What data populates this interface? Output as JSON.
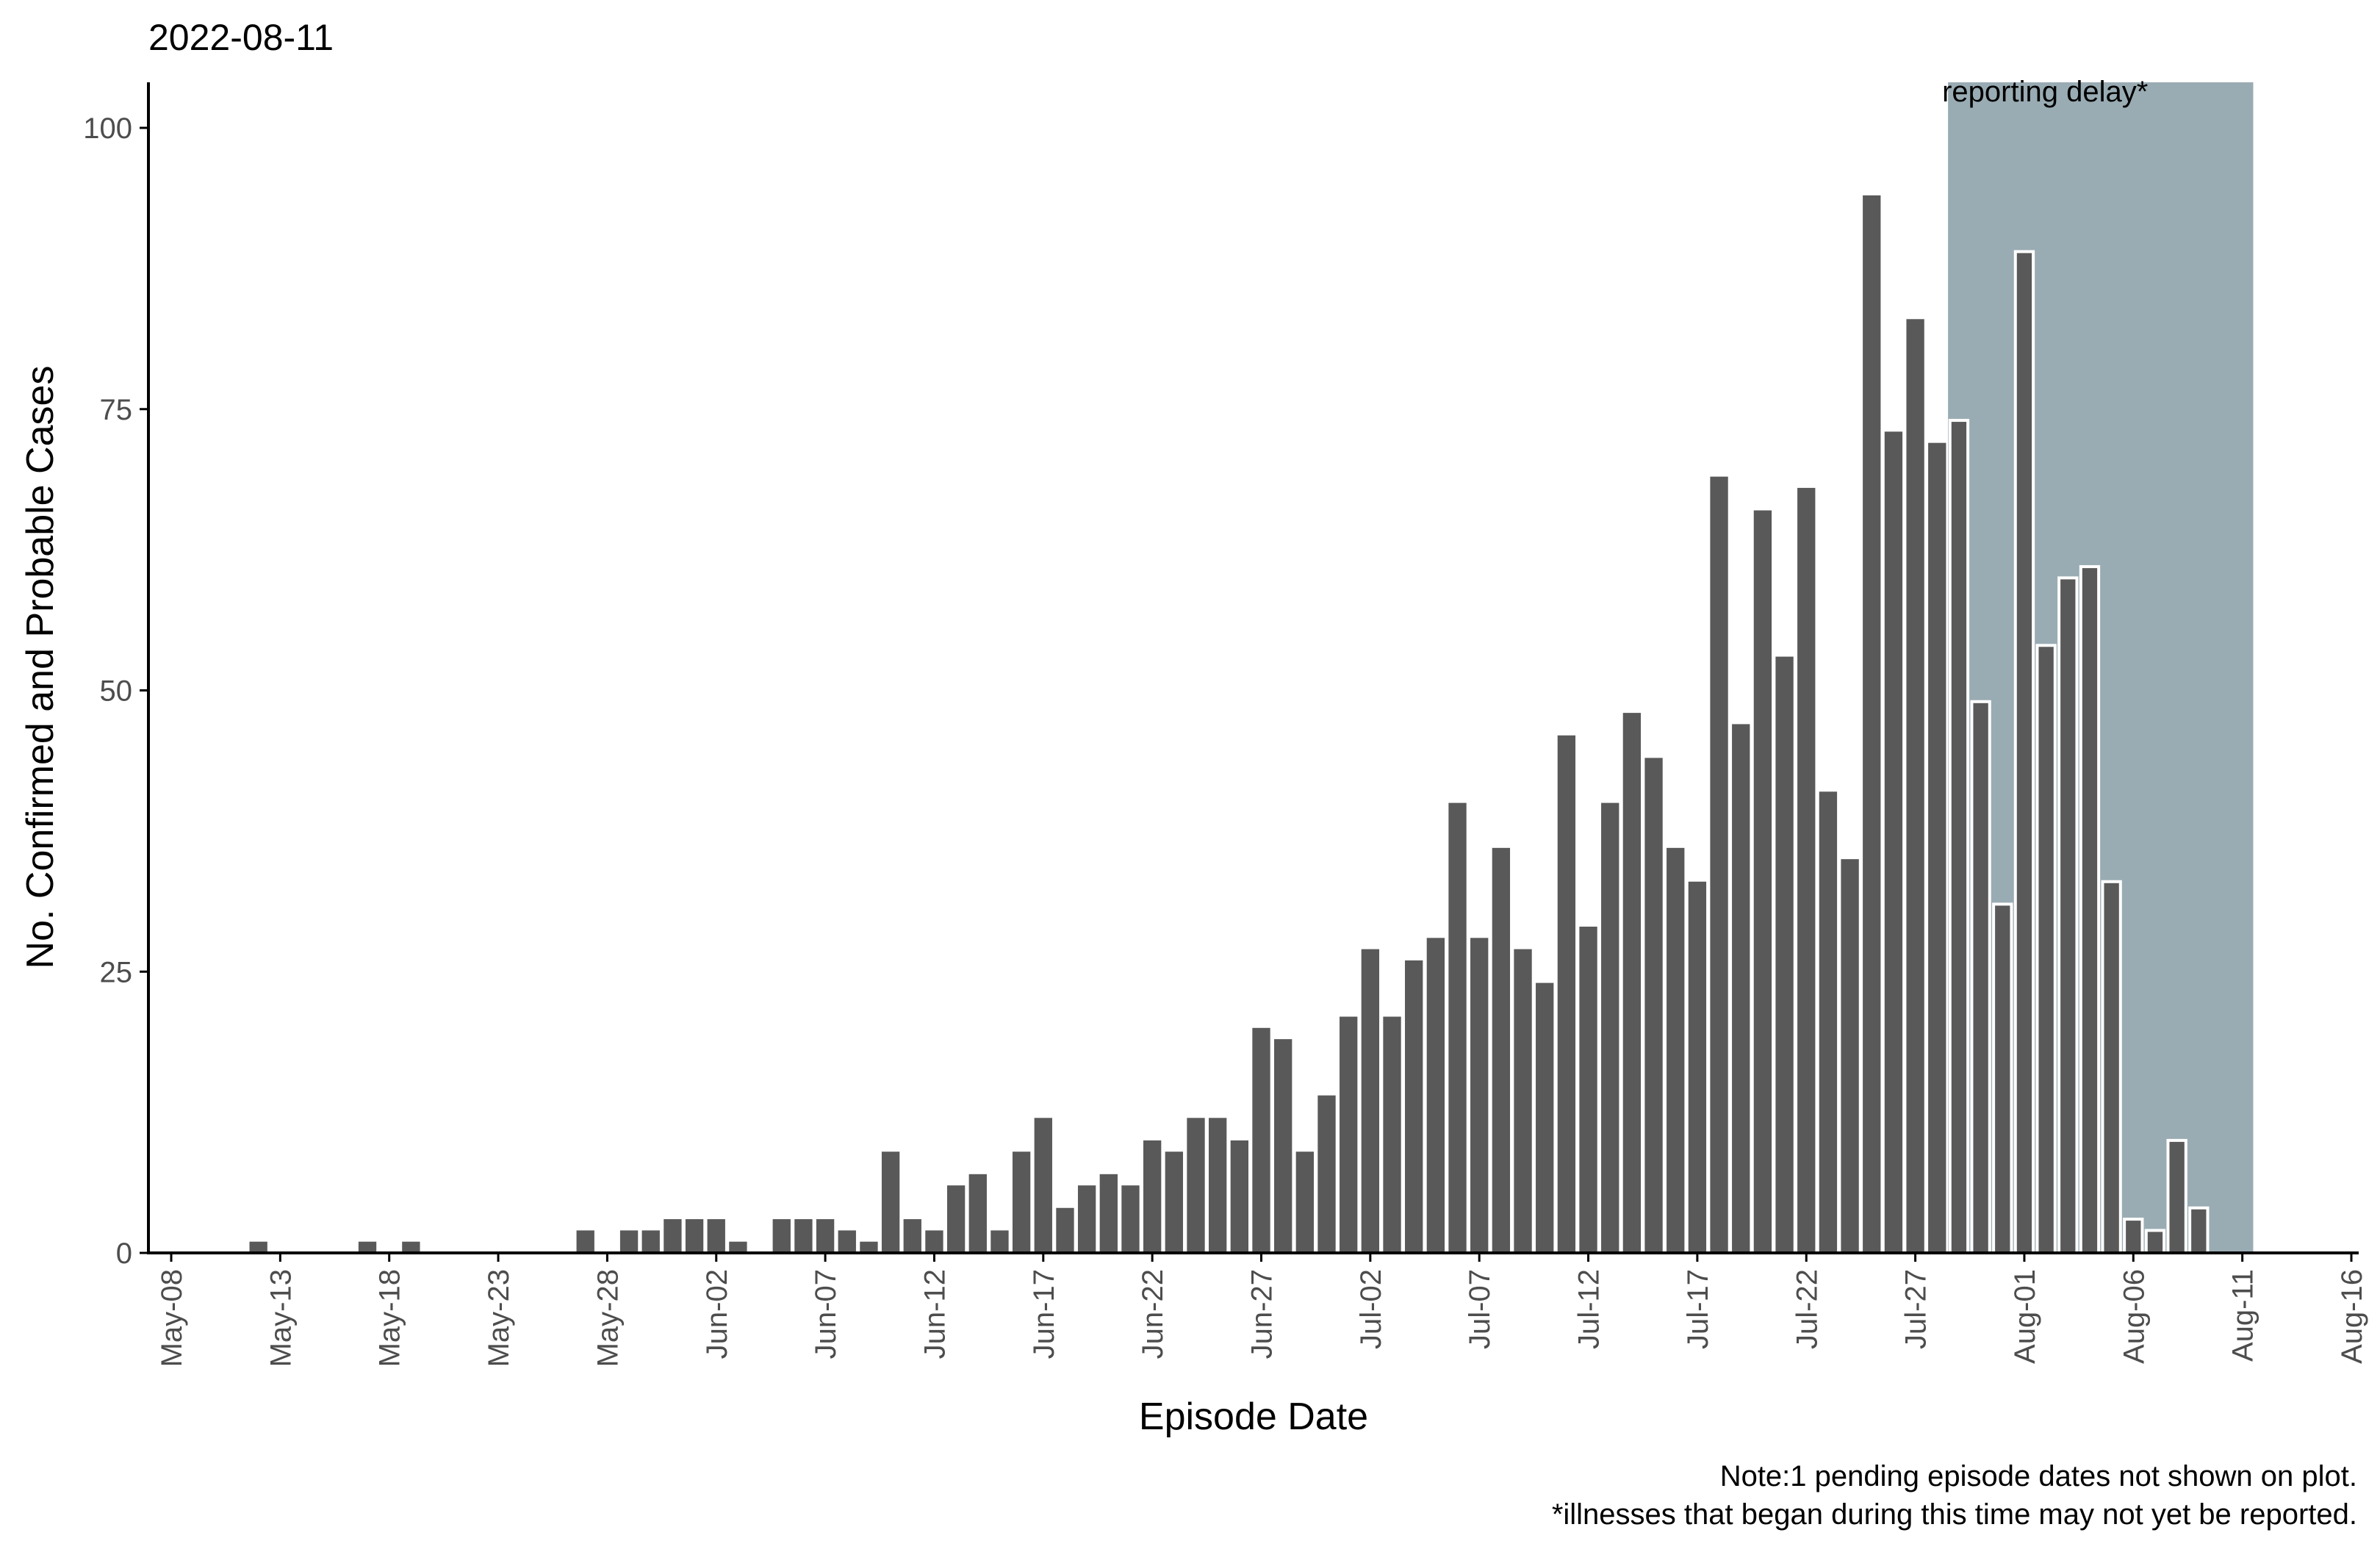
{
  "chart_data": {
    "type": "bar",
    "title": "2022-08-11",
    "xlabel": "Episode Date",
    "ylabel": "No. Confirmed and Probable Cases",
    "ylim": [
      0,
      104
    ],
    "y_ticks": [
      0,
      25,
      50,
      75,
      100
    ],
    "x_range": [
      "2022-05-07",
      "2022-08-16"
    ],
    "x_ticks": [
      "2022-05-08",
      "2022-05-13",
      "2022-05-18",
      "2022-05-23",
      "2022-05-28",
      "2022-06-02",
      "2022-06-07",
      "2022-06-12",
      "2022-06-17",
      "2022-06-22",
      "2022-06-27",
      "2022-07-02",
      "2022-07-07",
      "2022-07-12",
      "2022-07-17",
      "2022-07-22",
      "2022-07-27",
      "2022-08-01",
      "2022-08-06",
      "2022-08-11",
      "2022-08-16"
    ],
    "x_tick_labels": [
      "May-08",
      "May-13",
      "May-18",
      "May-23",
      "May-28",
      "Jun-02",
      "Jun-07",
      "Jun-12",
      "Jun-17",
      "Jun-22",
      "Jun-27",
      "Jul-02",
      "Jul-07",
      "Jul-12",
      "Jul-17",
      "Jul-22",
      "Jul-27",
      "Aug-01",
      "Aug-06",
      "Aug-11",
      "Aug-16"
    ],
    "start_date": "2022-05-12",
    "values": [
      1,
      0,
      0,
      0,
      0,
      1,
      0,
      1,
      0,
      0,
      0,
      0,
      0,
      0,
      0,
      2,
      0,
      2,
      2,
      3,
      3,
      3,
      1,
      0,
      3,
      3,
      3,
      2,
      1,
      9,
      3,
      2,
      6,
      7,
      2,
      9,
      12,
      4,
      6,
      7,
      6,
      10,
      9,
      12,
      12,
      10,
      20,
      19,
      9,
      14,
      21,
      27,
      21,
      26,
      28,
      40,
      28,
      36,
      27,
      24,
      46,
      29,
      40,
      48,
      44,
      36,
      33,
      69,
      47,
      66,
      53,
      68,
      41,
      35,
      94,
      73,
      83,
      72,
      74,
      49,
      31,
      89,
      54,
      60,
      61,
      33,
      3,
      2,
      10,
      4
    ],
    "delay_period": {
      "start": "2022-07-29",
      "end": "2022-08-11",
      "label": "reporting delay*",
      "color": "#9aacb3"
    },
    "bar_color": "#595959",
    "delay_bar_outline": "#ffffff",
    "grid": false,
    "captions": [
      "Note:1 pending episode dates not shown on plot.",
      "*illnesses that began during this time may not yet be reported."
    ]
  }
}
